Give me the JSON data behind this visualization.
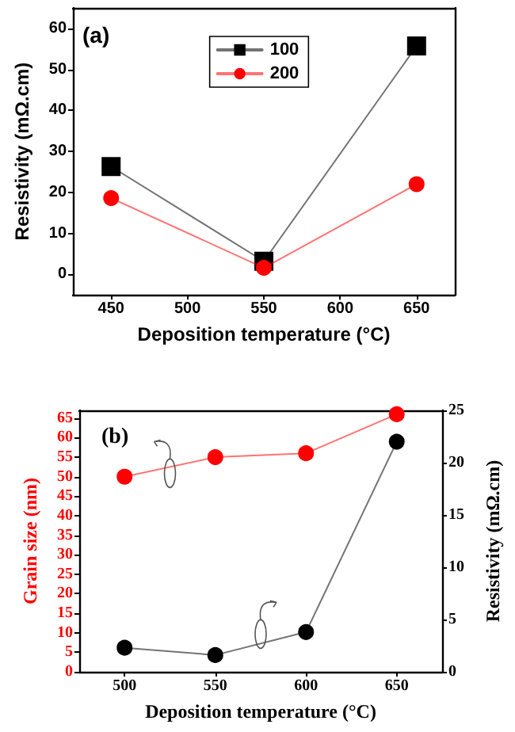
{
  "chart_data": [
    {
      "type": "line",
      "xlabel": "Deposition temperature (°C)",
      "ylabel": "Resistivity (mΩ.cm)",
      "annotations": [
        "(a)"
      ],
      "x": [
        450,
        550,
        650
      ],
      "xlim": [
        425,
        675
      ],
      "xticks": [
        450,
        500,
        550,
        600,
        650
      ],
      "ylim": [
        -5,
        65
      ],
      "yticks": [
        0,
        10,
        20,
        30,
        40,
        50,
        60
      ],
      "grid": false,
      "legend": "top",
      "line_style": "solid",
      "series": [
        {
          "name": "100",
          "color": "#000000",
          "marker": "square",
          "values": [
            26.3,
            3.2,
            55.7
          ]
        },
        {
          "name": "200",
          "color": "#ff0000",
          "marker": "circle",
          "values": [
            18.6,
            1.6,
            22.0
          ]
        }
      ]
    },
    {
      "type": "line",
      "xlabel": "Deposition temperature (°C)",
      "ylabel": "Grain size (nm)",
      "y2label": "Resistivity (mΩ.cm)",
      "annotations": [
        "(b)"
      ],
      "x": [
        500,
        550,
        600,
        650
      ],
      "xlim": [
        475,
        675
      ],
      "xticks": [
        500,
        550,
        600,
        650
      ],
      "ylim": [
        0,
        67
      ],
      "yticks": [
        0,
        5,
        10,
        15,
        20,
        25,
        30,
        35,
        40,
        45,
        50,
        55,
        60,
        65
      ],
      "y2lim": [
        0,
        25
      ],
      "y2ticks": [
        0,
        5,
        10,
        15,
        20,
        25
      ],
      "grid": false,
      "legend": false,
      "marker": "circle",
      "line_style": "solid",
      "series": [
        {
          "color": "#ff0000",
          "values": [
            50,
            55,
            56,
            66
          ]
        },
        {
          "color": "#000000",
          "axis": "y2",
          "values": [
            2.3,
            1.6,
            3.8,
            22.0
          ]
        }
      ]
    }
  ]
}
